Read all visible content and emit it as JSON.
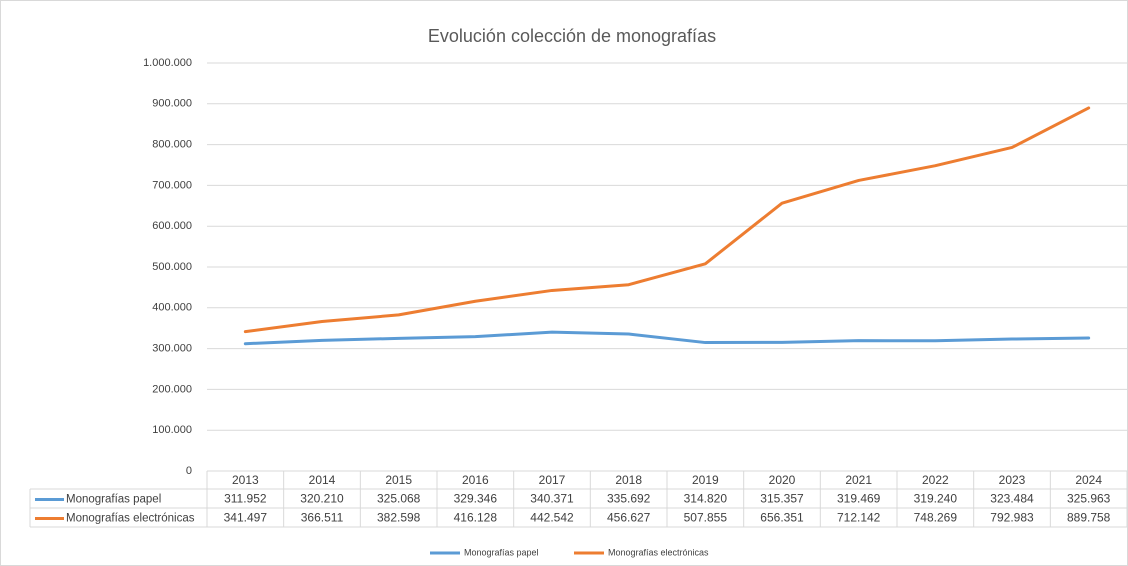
{
  "chart_data": {
    "type": "line",
    "title": "Evolución colección de monografías",
    "categories": [
      "2013",
      "2014",
      "2015",
      "2016",
      "2017",
      "2018",
      "2019",
      "2020",
      "2021",
      "2022",
      "2023",
      "2024"
    ],
    "series": [
      {
        "name": "Monografías papel",
        "color": "#5b9bd5",
        "values": [
          311952,
          320210,
          325068,
          329346,
          340371,
          335692,
          314820,
          315357,
          319469,
          319240,
          323484,
          325963
        ],
        "value_labels": [
          "311.952",
          "320.210",
          "325.068",
          "329.346",
          "340.371",
          "335.692",
          "314.820",
          "315.357",
          "319.469",
          "319.240",
          "323.484",
          "325.963"
        ]
      },
      {
        "name": "Monografías electrónicas",
        "color": "#ed7d31",
        "values": [
          341497,
          366511,
          382598,
          416128,
          442542,
          456627,
          507855,
          656351,
          712142,
          748269,
          792983,
          889758
        ],
        "value_labels": [
          "341.497",
          "366.511",
          "382.598",
          "416.128",
          "442.542",
          "456.627",
          "507.855",
          "656.351",
          "712.142",
          "748.269",
          "792.983",
          "889.758"
        ]
      }
    ],
    "ylim": [
      0,
      1000000
    ],
    "yticks": [
      0,
      {
        "value": 100000,
        "label": "100.000"
      },
      {
        "value": 200000,
        "label": "200.000"
      },
      {
        "value": 300000,
        "label": "300.000"
      },
      {
        "value": 400000,
        "label": "400.000"
      },
      {
        "value": 500000,
        "label": "500.000"
      },
      {
        "value": 600000,
        "label": "600.000"
      },
      {
        "value": 700000,
        "label": "700.000"
      },
      {
        "value": 800000,
        "label": "800.000"
      },
      {
        "value": 900000,
        "label": "900.000"
      },
      {
        "value": 1000000,
        "label": "1.000.000"
      }
    ],
    "grid": true,
    "legend": "bottom"
  }
}
